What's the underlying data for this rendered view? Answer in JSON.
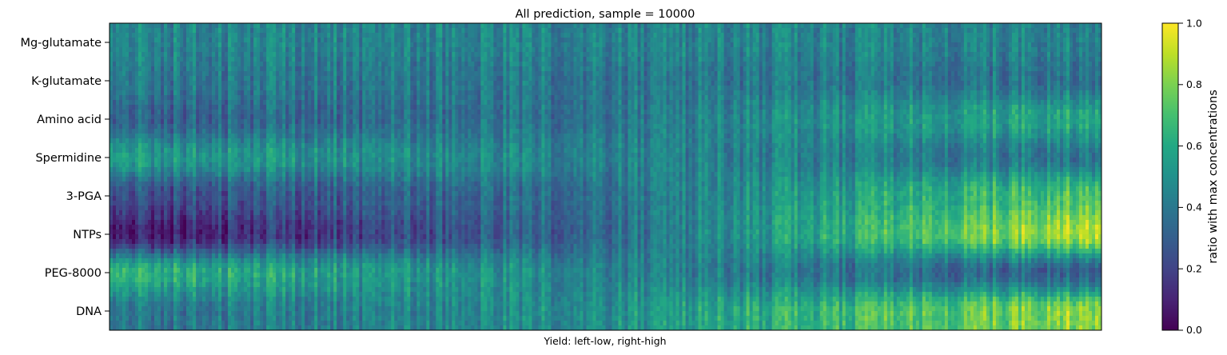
{
  "chart_data": {
    "type": "heatmap",
    "title": "All prediction, sample = 10000",
    "xlabel": "Yield: left-low, right-high",
    "rows": [
      "Mg-glutamate",
      "K-glutamate",
      "Amino acid",
      "Spermidine",
      "3-PGA",
      "NTPs",
      "PEG-8000",
      "DNA"
    ],
    "colorbar": {
      "label": "ratio with max concentrations",
      "range": [
        0.0,
        1.0
      ],
      "ticks": [
        "0.0",
        "0.2",
        "0.4",
        "0.6",
        "0.8",
        "1.0"
      ],
      "colormap": "viridis"
    },
    "row_trends": [
      {
        "name": "Mg-glutamate",
        "left": 0.45,
        "mid": 0.45,
        "right": 0.45
      },
      {
        "name": "K-glutamate",
        "left": 0.4,
        "mid": 0.4,
        "right": 0.38
      },
      {
        "name": "Amino acid",
        "left": 0.3,
        "mid": 0.4,
        "right": 0.62
      },
      {
        "name": "Spermidine",
        "left": 0.55,
        "mid": 0.45,
        "right": 0.4
      },
      {
        "name": "3-PGA",
        "left": 0.22,
        "mid": 0.38,
        "right": 0.75
      },
      {
        "name": "NTPs",
        "left": 0.05,
        "mid": 0.35,
        "right": 0.92
      },
      {
        "name": "PEG-8000",
        "left": 0.65,
        "mid": 0.45,
        "right": 0.3
      },
      {
        "name": "DNA",
        "left": 0.38,
        "mid": 0.5,
        "right": 0.85
      }
    ],
    "samples": 10000
  }
}
